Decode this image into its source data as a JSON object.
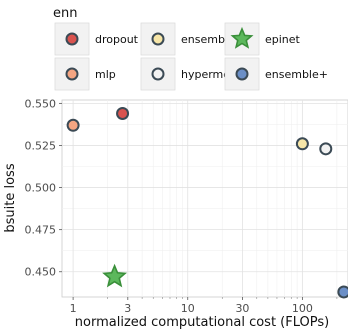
{
  "chart_data": {
    "type": "scatter",
    "title": "",
    "xlabel": "normalized computational cost (FLOPs)",
    "ylabel": "bsuite loss",
    "x_scale": "log",
    "x_ticks": [
      1,
      3,
      10,
      30,
      100
    ],
    "x_tick_labels": [
      "1",
      "3",
      "10",
      "30",
      "100"
    ],
    "y_ticks": [
      0.45,
      0.475,
      0.5,
      0.525,
      0.55
    ],
    "y_tick_labels": [
      "0.450",
      "0.475",
      "0.500",
      "0.525",
      "0.550"
    ],
    "xlim": [
      0.8,
      250
    ],
    "ylim": [
      0.435,
      0.552
    ],
    "grid": true,
    "legend": {
      "title": "enn",
      "placement": "top",
      "entries": [
        {
          "name": "dropout",
          "color": "#d9534f",
          "marker": "circle"
        },
        {
          "name": "ensemble",
          "color": "#f7e6a8",
          "marker": "circle"
        },
        {
          "name": "epinet",
          "color": "#5cb85c",
          "marker": "star"
        },
        {
          "name": "mlp",
          "color": "#f4a582",
          "marker": "circle"
        },
        {
          "name": "hypermodel",
          "color": "#f2f2f2",
          "marker": "circle"
        },
        {
          "name": "ensemble+",
          "color": "#6b8fc7",
          "marker": "circle"
        }
      ]
    },
    "points": [
      {
        "series": "mlp",
        "x": 1.0,
        "y": 0.537
      },
      {
        "series": "dropout",
        "x": 2.7,
        "y": 0.544
      },
      {
        "series": "epinet",
        "x": 2.3,
        "y": 0.447
      },
      {
        "series": "ensemble",
        "x": 100,
        "y": 0.526
      },
      {
        "series": "hypermodel",
        "x": 160,
        "y": 0.523
      },
      {
        "series": "ensemble+",
        "x": 230,
        "y": 0.438
      }
    ]
  }
}
